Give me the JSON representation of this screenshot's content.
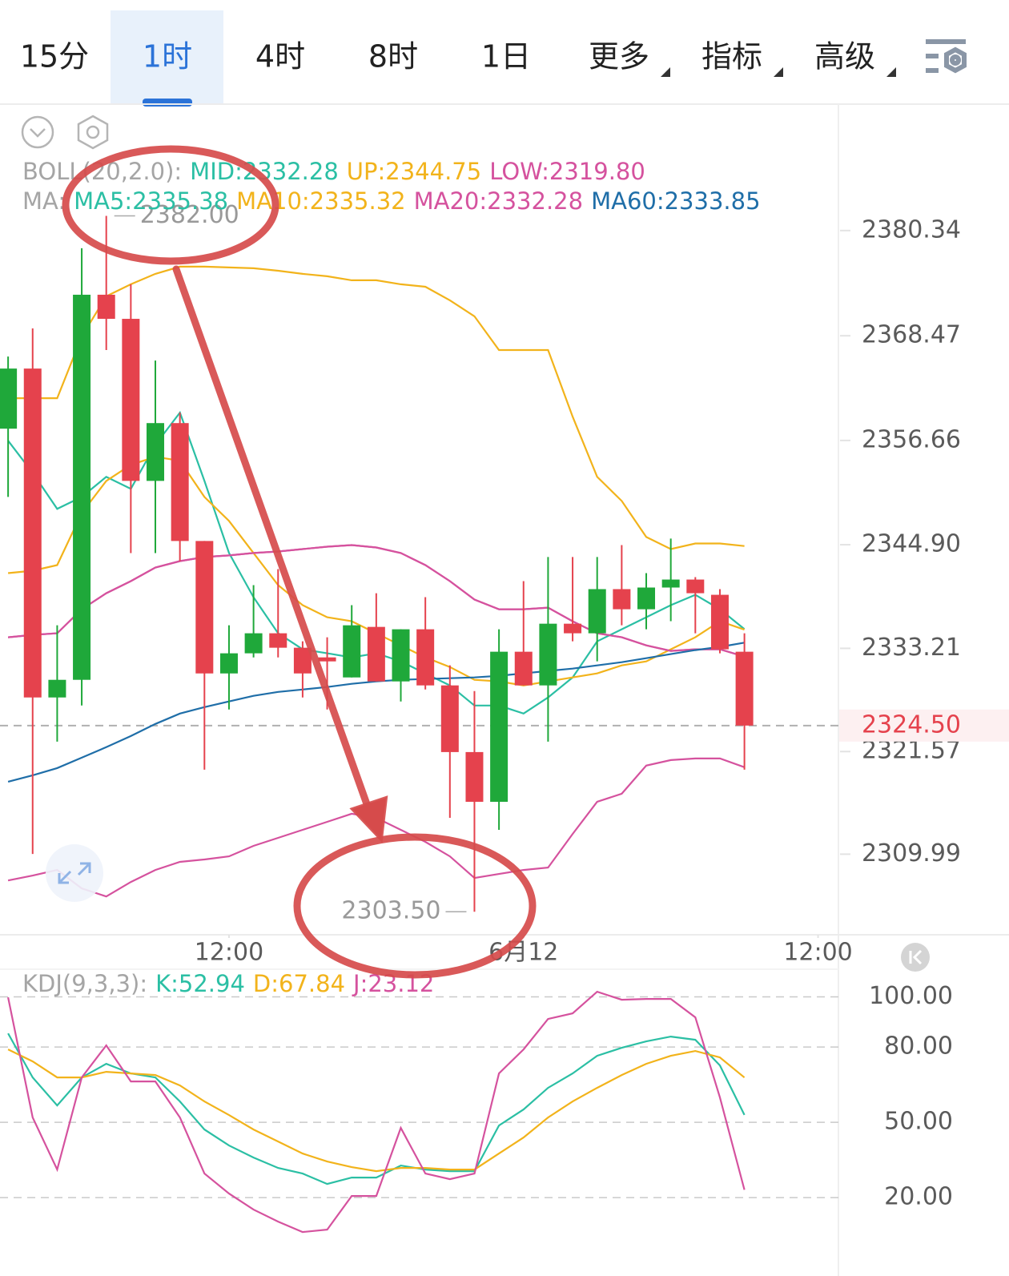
{
  "tabs": {
    "items": [
      {
        "label": "15分"
      },
      {
        "label": "1时"
      },
      {
        "label": "4时"
      },
      {
        "label": "8时"
      },
      {
        "label": "1日"
      },
      {
        "label": "更多",
        "dropdown": true
      },
      {
        "label": "指标",
        "dropdown": true
      },
      {
        "label": "高级",
        "dropdown": true
      }
    ],
    "selected": 1
  },
  "chart_data": [
    {
      "type": "candlestick",
      "boll_label": "BOLL(20,2.0):",
      "ma_label": "MA:",
      "x": [
        0,
        1,
        2,
        3,
        4,
        5,
        6,
        7,
        8,
        9,
        10,
        11,
        12,
        13,
        14,
        15,
        16,
        17,
        18,
        19,
        20,
        21,
        22,
        23,
        24,
        25,
        26,
        27,
        28,
        29,
        30
      ],
      "xlim": [
        -0.33,
        33.83
      ],
      "xticks": [
        {
          "value": 9,
          "label": "12:00"
        },
        {
          "value": 21,
          "label": "6月12"
        },
        {
          "value": 33,
          "label": "12:00"
        }
      ],
      "ylim": [
        2300.9,
        2394.6
      ],
      "yticks": [
        2380.34,
        2368.47,
        2356.66,
        {
          "value": 2344.9,
          "label": "2344.90"
        },
        2333.21,
        2321.57,
        2309.99
      ],
      "up_color": "#1fa83a",
      "down_color": "#e5424d",
      "candles": {
        "open": [
          2357.99,
          2364.77,
          2327.67,
          2329.66,
          2373.1,
          2370.38,
          2352.1,
          2358.62,
          2345.32,
          2330.38,
          2332.65,
          2334.91,
          2333.28,
          2332.19,
          2329.93,
          2335.63,
          2329.48,
          2335.36,
          2329.03,
          2321.51,
          2315.9,
          2332.83,
          2329.03,
          2335.99,
          2334.91,
          2339.89,
          2337.62,
          2340.07,
          2340.97,
          2339.25,
          2332.83
        ],
        "high": [
          2366.13,
          2369.3,
          2335.81,
          2378.35,
          2382.0,
          2374.28,
          2365.68,
          2359.8,
          2345.32,
          2335.81,
          2340.34,
          2342.15,
          2334.0,
          2334.46,
          2338.08,
          2339.43,
          2335.36,
          2338.98,
          2331.29,
          2328.39,
          2335.36,
          2340.79,
          2343.51,
          2343.51,
          2343.51,
          2344.86,
          2341.7,
          2345.59,
          2341.24,
          2339.89,
          2334.91
        ],
        "low": [
          2350.29,
          2310.02,
          2322.69,
          2326.76,
          2366.86,
          2343.96,
          2343.96,
          2343.05,
          2319.52,
          2326.31,
          2332.19,
          2332.19,
          2327.67,
          2326.31,
          2329.93,
          2329.48,
          2327.22,
          2328.57,
          2314.09,
          2303.5,
          2312.74,
          2329.03,
          2322.69,
          2334.0,
          2331.74,
          2335.81,
          2335.36,
          2336.27,
          2334.91,
          2332.65,
          2319.52
        ],
        "close": [
          2364.77,
          2327.67,
          2329.66,
          2373.1,
          2370.38,
          2352.1,
          2358.62,
          2345.32,
          2330.38,
          2332.65,
          2334.91,
          2333.28,
          2330.38,
          2331.74,
          2335.81,
          2329.48,
          2335.36,
          2329.03,
          2321.51,
          2315.9,
          2332.83,
          2329.03,
          2335.99,
          2334.91,
          2339.89,
          2337.62,
          2340.07,
          2340.97,
          2339.43,
          2333.1,
          2324.5
        ]
      },
      "boll_series": [
        {
          "name": "MID:2332.28",
          "text_color": "#2bbfa4",
          "color": "#d5529e",
          "values": [
            2334.46,
            2334.73,
            2334.91,
            2337.62,
            2339.43,
            2340.79,
            2342.33,
            2343.05,
            2343.51,
            2343.69,
            2343.96,
            2344.14,
            2344.41,
            2344.68,
            2344.86,
            2344.59,
            2343.96,
            2342.6,
            2340.79,
            2338.71,
            2337.62,
            2337.62,
            2337.8,
            2336.27,
            2334.91,
            2334.46,
            2333.55,
            2332.92,
            2333.1,
            2333.1,
            2332.28
          ]
        },
        {
          "name": "UP:2344.75",
          "text_color": "#f2b31b",
          "color": "#f2b31b",
          "values": [
            2361.43,
            2361.43,
            2361.43,
            2368.39,
            2372.92,
            2374.28,
            2375.45,
            2376.27,
            2376.27,
            2376.18,
            2376.09,
            2375.81,
            2375.45,
            2375.18,
            2374.73,
            2374.73,
            2374.28,
            2374.0,
            2372.47,
            2370.66,
            2366.86,
            2366.86,
            2366.86,
            2359.34,
            2352.56,
            2349.84,
            2345.77,
            2344.41,
            2345.04,
            2345.04,
            2344.75
          ]
        },
        {
          "name": "LOW:2319.80",
          "text_color": "#d5529e",
          "color": "#d5529e",
          "values": [
            2307.03,
            2307.58,
            2308.21,
            2306.13,
            2305.22,
            2306.85,
            2308.21,
            2309.12,
            2309.39,
            2309.75,
            2310.93,
            2311.83,
            2312.74,
            2313.64,
            2314.55,
            2314.09,
            2312.74,
            2311.38,
            2309.75,
            2307.31,
            2307.76,
            2308.21,
            2308.48,
            2312.28,
            2315.9,
            2316.81,
            2319.98,
            2320.61,
            2320.79,
            2320.79,
            2319.8
          ]
        }
      ],
      "ma_series": [
        {
          "name": "MA5:2335.38",
          "text_color": "#2bbfa4",
          "color": "#2bbfa4",
          "values": [
            2356.63,
            2353.01,
            2348.94,
            2350.29,
            2352.56,
            2351.2,
            2356.18,
            2359.8,
            2352.1,
            2343.96,
            2338.98,
            2334.91,
            2333.1,
            2332.65,
            2332.19,
            2332.65,
            2331.74,
            2330.38,
            2329.03,
            2326.76,
            2326.76,
            2325.86,
            2327.67,
            2329.93,
            2334.0,
            2335.36,
            2336.72,
            2338.08,
            2339.25,
            2337.62,
            2335.38
          ]
        },
        {
          "name": "MA10:2335.32",
          "text_color": "#f2b31b",
          "color": "#f2b31b",
          "values": [
            2341.7,
            2341.97,
            2342.6,
            2348.48,
            2352.1,
            2353.91,
            2354.82,
            2354.37,
            2350.29,
            2347.58,
            2343.96,
            2340.34,
            2338.08,
            2336.72,
            2336.27,
            2334.91,
            2333.55,
            2332.19,
            2331.11,
            2329.66,
            2329.48,
            2329.03,
            2329.48,
            2329.93,
            2330.38,
            2331.29,
            2331.74,
            2333.1,
            2334.46,
            2336.27,
            2335.32
          ]
        },
        {
          "name": "MA20:2332.28",
          "text_color": "#d5529e",
          "color": "#d5529e",
          "values": [
            2334.46,
            2334.73,
            2334.91,
            2337.62,
            2339.43,
            2340.79,
            2342.33,
            2343.05,
            2343.51,
            2343.69,
            2343.96,
            2344.14,
            2344.41,
            2344.68,
            2344.86,
            2344.59,
            2343.96,
            2342.6,
            2340.79,
            2338.71,
            2337.62,
            2337.62,
            2337.8,
            2336.27,
            2334.91,
            2334.46,
            2333.55,
            2332.92,
            2333.1,
            2333.1,
            2332.28
          ]
        },
        {
          "name": "MA60:2333.85",
          "text_color": "#1f6ea8",
          "color": "#1f6ea8",
          "values": [
            2318.17,
            2318.89,
            2319.7,
            2320.88,
            2322.06,
            2323.32,
            2324.68,
            2325.86,
            2326.58,
            2327.22,
            2327.85,
            2328.3,
            2328.57,
            2328.85,
            2329.21,
            2329.48,
            2329.66,
            2329.75,
            2329.84,
            2329.93,
            2330.11,
            2330.38,
            2330.66,
            2330.93,
            2331.29,
            2331.65,
            2332.1,
            2332.56,
            2333.01,
            2333.37,
            2333.85
          ]
        }
      ],
      "last_price": {
        "value": 2324.5,
        "label": "2324.50",
        "color": "#e5424d"
      },
      "annotations": [
        {
          "value": 2382,
          "label": "2382.00",
          "side": "right"
        },
        {
          "value": 2303.5,
          "label": "2303.50",
          "side": "left"
        }
      ]
    },
    {
      "type": "line",
      "title": "KDJ(9,3,3):",
      "ylim": [
        -2.3,
        111
      ],
      "yticks": [
        {
          "value": 100,
          "label": "100.00"
        },
        {
          "value": 80,
          "label": "80.00"
        },
        {
          "value": 50,
          "label": "50.00"
        },
        {
          "value": 20,
          "label": "20.00"
        }
      ],
      "grid": true,
      "series": [
        {
          "name": "K:52.94",
          "color": "#2bbfa4",
          "values": [
            85.43,
            67.88,
            56.71,
            67.88,
            73.3,
            69.47,
            67.88,
            58.3,
            47.13,
            40.75,
            35.96,
            31.81,
            29.58,
            25.43,
            27.98,
            27.98,
            32.77,
            31.17,
            30.53,
            30.53,
            48.73,
            55.11,
            63.73,
            69.47,
            76.5,
            79.69,
            82.24,
            84.16,
            82.88,
            72.67,
            52.94
          ]
        },
        {
          "name": "D:67.84",
          "color": "#f2b31b",
          "values": [
            79.05,
            74.26,
            67.88,
            67.88,
            70.11,
            69.47,
            68.83,
            64.69,
            58.3,
            52.88,
            47.13,
            42.34,
            37.55,
            34.36,
            32.13,
            30.53,
            31.81,
            31.81,
            31.17,
            31.17,
            37.55,
            43.94,
            51.92,
            58.3,
            63.73,
            68.83,
            73.3,
            76.5,
            78.41,
            75.86,
            67.84
          ]
        },
        {
          "name": "J:23.12",
          "color": "#d5529e",
          "values": [
            99.8,
            51.92,
            31.17,
            67.88,
            80.64,
            66.28,
            66.28,
            51.92,
            29.58,
            21.6,
            15.21,
            10.42,
            6.28,
            7.23,
            20.64,
            20.64,
            47.77,
            29.58,
            27.34,
            29.58,
            69.47,
            79.05,
            91.18,
            93.41,
            102.03,
            98.84,
            99.16,
            99.16,
            91.82,
            59.9,
            23.12
          ]
        }
      ]
    }
  ]
}
